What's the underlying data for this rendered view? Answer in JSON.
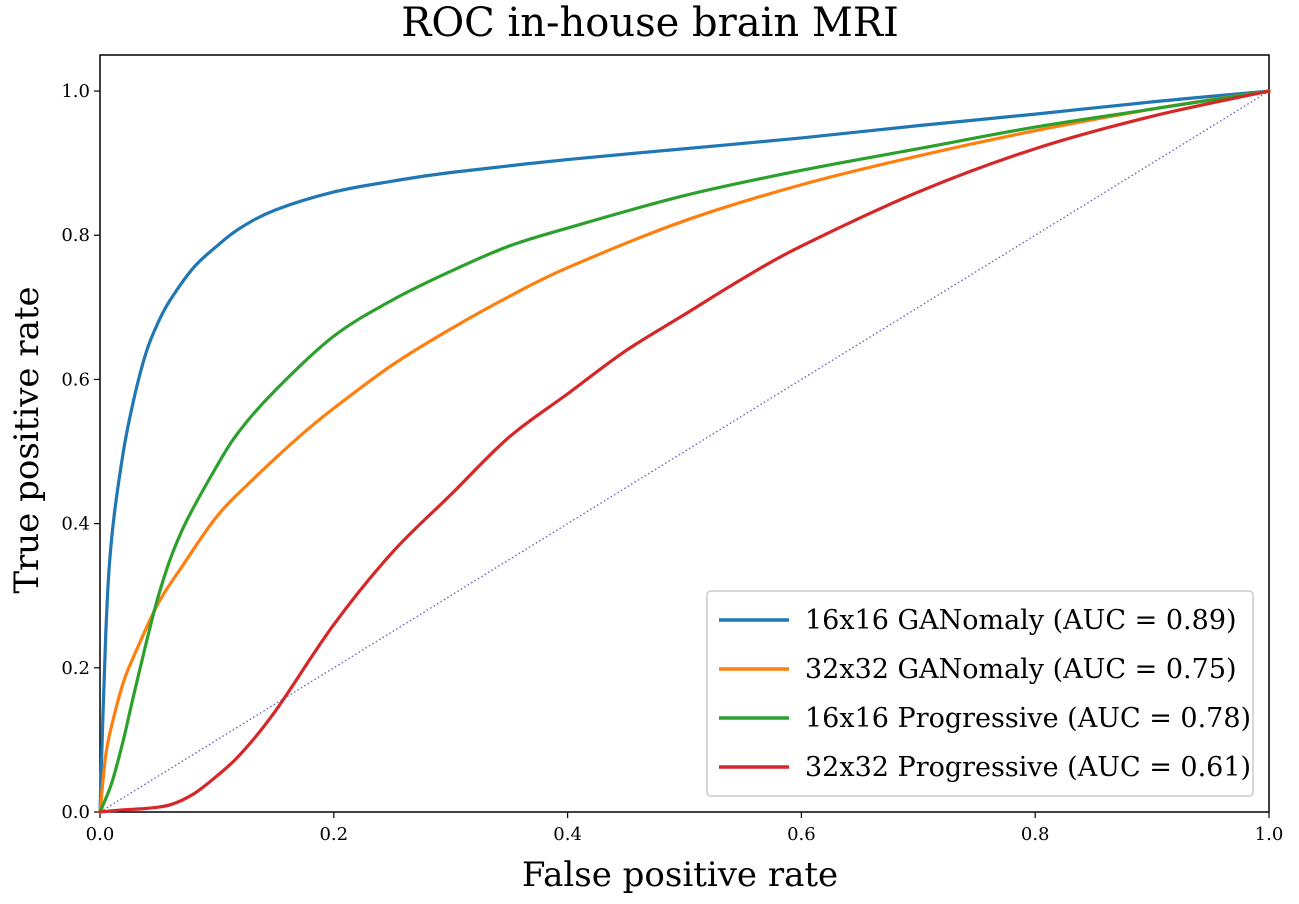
{
  "chart_data": {
    "type": "line",
    "title": "ROC in-house brain MRI",
    "xlabel": "False positive rate",
    "ylabel": "True positive rate",
    "xlim": [
      0.0,
      1.0
    ],
    "ylim": [
      0.0,
      1.05
    ],
    "xticks": [
      "0.0",
      "0.2",
      "0.4",
      "0.6",
      "0.8",
      "1.0"
    ],
    "yticks": [
      "0.0",
      "0.2",
      "0.4",
      "0.6",
      "0.8",
      "1.0"
    ],
    "grid": false,
    "legend_position": "lower-right",
    "series": [
      {
        "name": "16x16 GANomaly (AUC = 0.89)",
        "color": "#1f77b4",
        "x": [
          0,
          0.005,
          0.01,
          0.02,
          0.03,
          0.04,
          0.05,
          0.06,
          0.08,
          0.1,
          0.12,
          0.15,
          0.2,
          0.25,
          0.3,
          0.4,
          0.5,
          0.6,
          0.7,
          0.8,
          0.9,
          1.0
        ],
        "y": [
          0,
          0.25,
          0.38,
          0.5,
          0.58,
          0.64,
          0.68,
          0.71,
          0.755,
          0.785,
          0.81,
          0.835,
          0.86,
          0.875,
          0.887,
          0.905,
          0.92,
          0.935,
          0.952,
          0.968,
          0.985,
          1.0
        ]
      },
      {
        "name": "32x32 GANomaly (AUC = 0.75)",
        "color": "#ff7f0e",
        "x": [
          0,
          0.005,
          0.01,
          0.02,
          0.03,
          0.05,
          0.07,
          0.1,
          0.13,
          0.17,
          0.2,
          0.25,
          0.3,
          0.35,
          0.4,
          0.5,
          0.6,
          0.7,
          0.8,
          0.9,
          1.0
        ],
        "y": [
          0,
          0.08,
          0.12,
          0.18,
          0.22,
          0.29,
          0.34,
          0.41,
          0.46,
          0.52,
          0.56,
          0.62,
          0.67,
          0.715,
          0.755,
          0.82,
          0.87,
          0.91,
          0.945,
          0.975,
          1.0
        ]
      },
      {
        "name": "16x16 Progressive (AUC = 0.78)",
        "color": "#2ca02c",
        "x": [
          0,
          0.01,
          0.02,
          0.03,
          0.05,
          0.07,
          0.1,
          0.12,
          0.15,
          0.2,
          0.25,
          0.3,
          0.35,
          0.4,
          0.5,
          0.6,
          0.7,
          0.8,
          0.9,
          1.0
        ],
        "y": [
          0,
          0.04,
          0.1,
          0.17,
          0.3,
          0.39,
          0.48,
          0.53,
          0.585,
          0.66,
          0.71,
          0.75,
          0.785,
          0.81,
          0.855,
          0.89,
          0.92,
          0.95,
          0.975,
          1.0
        ]
      },
      {
        "name": "32x32 Progressive (AUC = 0.61)",
        "color": "#d62728",
        "x": [
          0,
          0.02,
          0.04,
          0.06,
          0.08,
          0.1,
          0.12,
          0.15,
          0.2,
          0.25,
          0.3,
          0.35,
          0.4,
          0.45,
          0.5,
          0.55,
          0.6,
          0.7,
          0.8,
          0.9,
          1.0
        ],
        "y": [
          0,
          0.003,
          0.005,
          0.01,
          0.025,
          0.05,
          0.08,
          0.14,
          0.26,
          0.36,
          0.44,
          0.52,
          0.58,
          0.64,
          0.69,
          0.74,
          0.785,
          0.86,
          0.92,
          0.965,
          1.0
        ]
      }
    ],
    "reference_line": {
      "name": "chance",
      "color": "#1a1aa0",
      "x": [
        0,
        1
      ],
      "y": [
        0,
        1
      ]
    }
  }
}
